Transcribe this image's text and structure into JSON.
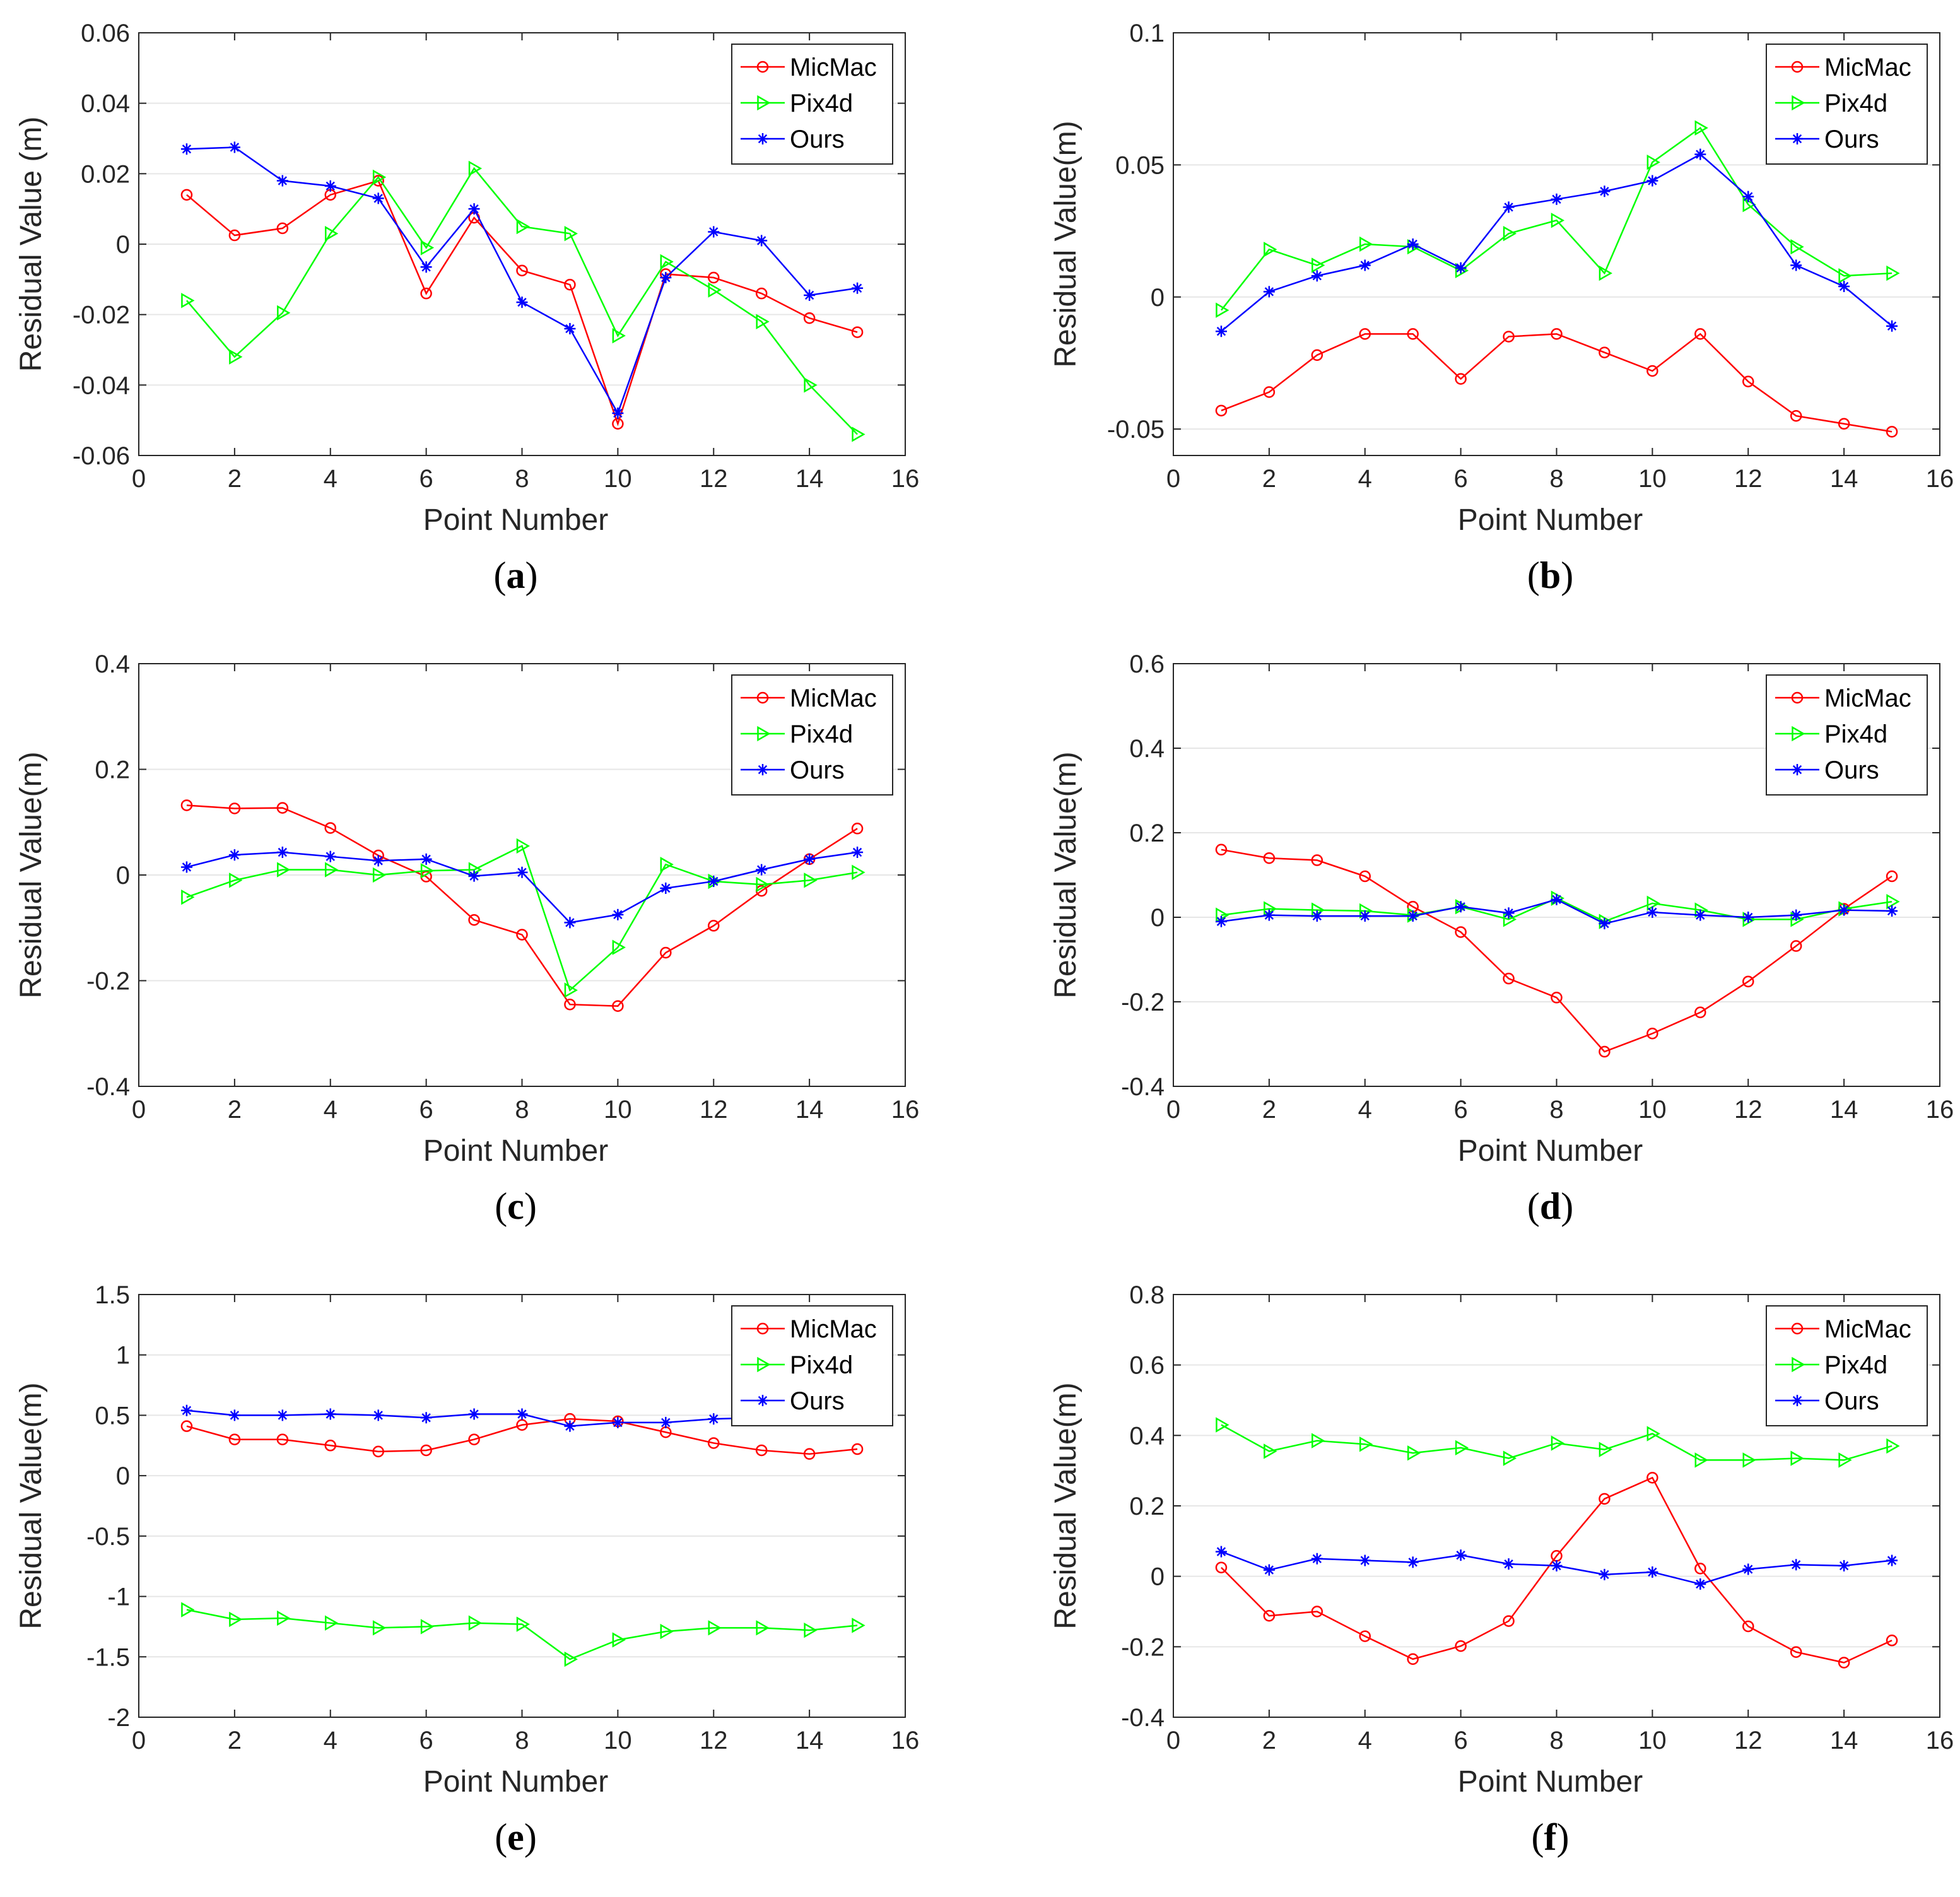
{
  "chart_data": [
    {
      "type": "line",
      "panel_label": "a",
      "xlabel": "Point Number",
      "ylabel": "Residual Value (m)",
      "xlim": [
        0,
        16
      ],
      "ylim": [
        -0.06,
        0.06
      ],
      "xticks": [
        0,
        2,
        4,
        6,
        8,
        10,
        12,
        14,
        16
      ],
      "yticks": [
        -0.06,
        -0.04,
        -0.02,
        0,
        0.02,
        0.04,
        0.06
      ],
      "ytick_labels": [
        "-0.06",
        "-0.04",
        "-0.02",
        "0",
        "0.02",
        "0.04",
        "0.06"
      ],
      "grid": "y",
      "legend_position": "top-right",
      "x": [
        1,
        2,
        3,
        4,
        5,
        6,
        7,
        8,
        9,
        10,
        11,
        12,
        13,
        14,
        15
      ],
      "series": [
        {
          "name": "MicMac",
          "color": "#ff0000",
          "marker": "circle",
          "values": [
            0.014,
            0.0025,
            0.0045,
            0.014,
            0.018,
            -0.014,
            0.0075,
            -0.0075,
            -0.0115,
            -0.051,
            -0.0085,
            -0.0095,
            -0.014,
            -0.021,
            -0.025
          ]
        },
        {
          "name": "Pix4d",
          "color": "#00ff00",
          "marker": "triangle",
          "values": [
            -0.016,
            -0.032,
            -0.0195,
            0.003,
            0.019,
            -0.001,
            0.0215,
            0.005,
            0.003,
            -0.026,
            -0.005,
            -0.013,
            -0.022,
            -0.04,
            -0.054
          ]
        },
        {
          "name": "Ours",
          "color": "#0000ff",
          "marker": "asterisk",
          "values": [
            0.027,
            0.0275,
            0.018,
            0.0165,
            0.013,
            -0.0065,
            0.01,
            -0.0165,
            -0.024,
            -0.048,
            -0.0095,
            0.0035,
            0.001,
            -0.0145,
            -0.0125
          ]
        }
      ]
    },
    {
      "type": "line",
      "panel_label": "b",
      "xlabel": "Point Number",
      "ylabel": "Residual Value(m)",
      "xlim": [
        0,
        16
      ],
      "ylim": [
        -0.06,
        0.1
      ],
      "xticks": [
        0,
        2,
        4,
        6,
        8,
        10,
        12,
        14,
        16
      ],
      "yticks": [
        -0.05,
        0,
        0.05,
        0.1
      ],
      "ytick_labels": [
        "-0.05",
        "0",
        "0.05",
        "0.1"
      ],
      "grid": "y",
      "legend_position": "top-right",
      "x": [
        1,
        2,
        3,
        4,
        5,
        6,
        7,
        8,
        9,
        10,
        11,
        12,
        13,
        14,
        15
      ],
      "series": [
        {
          "name": "MicMac",
          "color": "#ff0000",
          "marker": "circle",
          "values": [
            -0.043,
            -0.036,
            -0.022,
            -0.014,
            -0.014,
            -0.031,
            -0.015,
            -0.014,
            -0.021,
            -0.028,
            -0.014,
            -0.032,
            -0.045,
            -0.048,
            -0.051
          ]
        },
        {
          "name": "Pix4d",
          "color": "#00ff00",
          "marker": "triangle",
          "values": [
            -0.005,
            0.018,
            0.012,
            0.02,
            0.019,
            0.01,
            0.024,
            0.029,
            0.009,
            0.051,
            0.064,
            0.035,
            0.019,
            0.008,
            0.009
          ]
        },
        {
          "name": "Ours",
          "color": "#0000ff",
          "marker": "asterisk",
          "values": [
            -0.013,
            0.002,
            0.008,
            0.012,
            0.02,
            0.011,
            0.034,
            0.037,
            0.04,
            0.044,
            0.054,
            0.038,
            0.012,
            0.004,
            -0.011
          ]
        }
      ]
    },
    {
      "type": "line",
      "panel_label": "c",
      "xlabel": "Point Number",
      "ylabel": "Residual Value(m)",
      "xlim": [
        0,
        16
      ],
      "ylim": [
        -0.4,
        0.4
      ],
      "xticks": [
        0,
        2,
        4,
        6,
        8,
        10,
        12,
        14,
        16
      ],
      "yticks": [
        -0.4,
        -0.2,
        0,
        0.2,
        0.4
      ],
      "ytick_labels": [
        "-0.4",
        "-0.2",
        "0",
        "0.2",
        "0.4"
      ],
      "grid": "y",
      "legend_position": "top-right",
      "x": [
        1,
        2,
        3,
        4,
        5,
        6,
        7,
        8,
        9,
        10,
        11,
        12,
        13,
        14,
        15
      ],
      "series": [
        {
          "name": "MicMac",
          "color": "#ff0000",
          "marker": "circle",
          "values": [
            0.132,
            0.126,
            0.127,
            0.089,
            0.037,
            -0.003,
            -0.085,
            -0.113,
            -0.245,
            -0.248,
            -0.147,
            -0.096,
            -0.03,
            0.03,
            0.088
          ]
        },
        {
          "name": "Pix4d",
          "color": "#00ff00",
          "marker": "triangle",
          "values": [
            -0.042,
            -0.01,
            0.01,
            0.01,
            0,
            0.008,
            0.01,
            0.055,
            -0.218,
            -0.137,
            0.02,
            -0.012,
            -0.018,
            -0.01,
            0.005
          ]
        },
        {
          "name": "Ours",
          "color": "#0000ff",
          "marker": "asterisk",
          "values": [
            0.015,
            0.038,
            0.043,
            0.035,
            0.027,
            0.03,
            -0.002,
            0.005,
            -0.09,
            -0.075,
            -0.025,
            -0.012,
            0.01,
            0.03,
            0.043
          ]
        }
      ]
    },
    {
      "type": "line",
      "panel_label": "d",
      "xlabel": "Point Number",
      "ylabel": "Residual Value(m)",
      "xlim": [
        0,
        16
      ],
      "ylim": [
        -0.4,
        0.6
      ],
      "xticks": [
        0,
        2,
        4,
        6,
        8,
        10,
        12,
        14,
        16
      ],
      "yticks": [
        -0.4,
        -0.2,
        0,
        0.2,
        0.4,
        0.6
      ],
      "ytick_labels": [
        "-0.4",
        "-0.2",
        "0",
        "0.2",
        "0.4",
        "0.6"
      ],
      "grid": "y",
      "legend_position": "top-right",
      "x": [
        1,
        2,
        3,
        4,
        5,
        6,
        7,
        8,
        9,
        10,
        11,
        12,
        13,
        14,
        15
      ],
      "series": [
        {
          "name": "MicMac",
          "color": "#ff0000",
          "marker": "circle",
          "values": [
            0.16,
            0.14,
            0.135,
            0.097,
            0.025,
            -0.035,
            -0.145,
            -0.19,
            -0.318,
            -0.275,
            -0.225,
            -0.152,
            -0.068,
            0.02,
            0.097
          ]
        },
        {
          "name": "Pix4d",
          "color": "#00ff00",
          "marker": "triangle",
          "values": [
            0.005,
            0.02,
            0.017,
            0.015,
            0.005,
            0.025,
            -0.005,
            0.045,
            -0.01,
            0.033,
            0.017,
            -0.005,
            -0.005,
            0.02,
            0.037
          ]
        },
        {
          "name": "Ours",
          "color": "#0000ff",
          "marker": "asterisk",
          "values": [
            -0.01,
            0.005,
            0.003,
            0.003,
            0.003,
            0.025,
            0.01,
            0.042,
            -0.015,
            0.012,
            0.005,
            0,
            0.005,
            0.017,
            0.015
          ]
        }
      ]
    },
    {
      "type": "line",
      "panel_label": "e",
      "xlabel": "Point Number",
      "ylabel": "Residual Value(m)",
      "xlim": [
        0,
        16
      ],
      "ylim": [
        -2,
        1.5
      ],
      "xticks": [
        0,
        2,
        4,
        6,
        8,
        10,
        12,
        14,
        16
      ],
      "yticks": [
        -2,
        -1.5,
        -1,
        -0.5,
        0,
        0.5,
        1,
        1.5
      ],
      "ytick_labels": [
        "-2",
        "-1.5",
        "-1",
        "-0.5",
        "0",
        "0.5",
        "1",
        "1.5"
      ],
      "grid": "y",
      "legend_position": "top-right",
      "x": [
        1,
        2,
        3,
        4,
        5,
        6,
        7,
        8,
        9,
        10,
        11,
        12,
        13,
        14,
        15
      ],
      "series": [
        {
          "name": "MicMac",
          "color": "#ff0000",
          "marker": "circle",
          "values": [
            0.41,
            0.3,
            0.3,
            0.25,
            0.2,
            0.21,
            0.3,
            0.42,
            0.47,
            0.45,
            0.36,
            0.27,
            0.21,
            0.18,
            0.22
          ]
        },
        {
          "name": "Pix4d",
          "color": "#00ff00",
          "marker": "triangle",
          "values": [
            -1.11,
            -1.19,
            -1.18,
            -1.22,
            -1.26,
            -1.25,
            -1.22,
            -1.23,
            -1.52,
            -1.36,
            -1.29,
            -1.26,
            -1.26,
            -1.28,
            -1.24
          ]
        },
        {
          "name": "Ours",
          "color": "#0000ff",
          "marker": "asterisk",
          "values": [
            0.54,
            0.5,
            0.5,
            0.51,
            0.5,
            0.48,
            0.51,
            0.51,
            0.41,
            0.44,
            0.44,
            0.47,
            0.48,
            0.48,
            0.49
          ]
        }
      ]
    },
    {
      "type": "line",
      "panel_label": "f",
      "xlabel": "Point Number",
      "ylabel": "Residual Value(m)",
      "xlim": [
        0,
        16
      ],
      "ylim": [
        -0.4,
        0.8
      ],
      "xticks": [
        0,
        2,
        4,
        6,
        8,
        10,
        12,
        14,
        16
      ],
      "yticks": [
        -0.4,
        -0.2,
        0,
        0.2,
        0.4,
        0.6,
        0.8
      ],
      "ytick_labels": [
        "-0.4",
        "-0.2",
        "0",
        "0.2",
        "0.4",
        "0.6",
        "0.8"
      ],
      "grid": "y",
      "legend_position": "top-right",
      "x": [
        1,
        2,
        3,
        4,
        5,
        6,
        7,
        8,
        9,
        10,
        11,
        12,
        13,
        14,
        15
      ],
      "series": [
        {
          "name": "MicMac",
          "color": "#ff0000",
          "marker": "circle",
          "values": [
            0.025,
            -0.112,
            -0.1,
            -0.17,
            -0.235,
            -0.198,
            -0.127,
            0.058,
            0.22,
            0.28,
            0.022,
            -0.142,
            -0.215,
            -0.245,
            -0.182
          ]
        },
        {
          "name": "Pix4d",
          "color": "#00ff00",
          "marker": "triangle",
          "values": [
            0.43,
            0.355,
            0.385,
            0.375,
            0.35,
            0.365,
            0.335,
            0.378,
            0.36,
            0.405,
            0.33,
            0.33,
            0.335,
            0.33,
            0.37
          ]
        },
        {
          "name": "Ours",
          "color": "#0000ff",
          "marker": "asterisk",
          "values": [
            0.07,
            0.018,
            0.05,
            0.045,
            0.04,
            0.06,
            0.035,
            0.03,
            0.005,
            0.012,
            -0.022,
            0.02,
            0.033,
            0.03,
            0.045
          ]
        }
      ]
    }
  ]
}
